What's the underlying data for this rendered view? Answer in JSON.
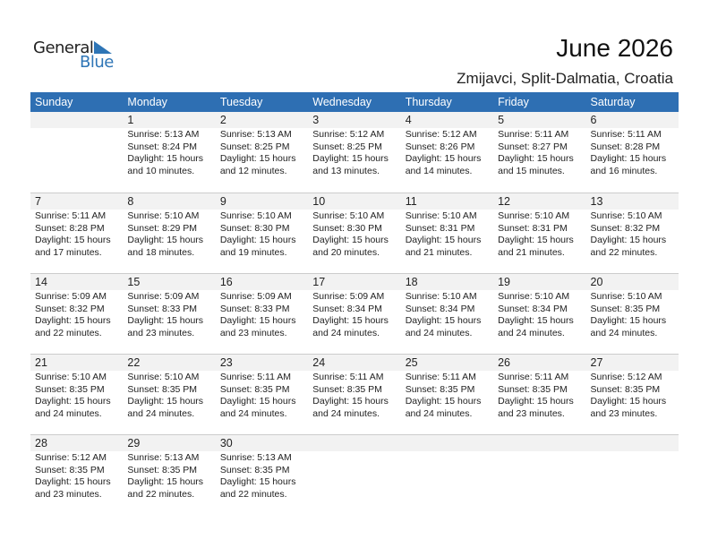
{
  "logo": {
    "word1": "General",
    "word2": "Blue"
  },
  "title": "June 2026",
  "subtitle": "Zmijavci, Split-Dalmatia, Croatia",
  "colors": {
    "header_bg": "#2e6fb3",
    "day_bar": "#f2f2f2",
    "logo_blue": "#2e75b6"
  },
  "weekdays": [
    "Sunday",
    "Monday",
    "Tuesday",
    "Wednesday",
    "Thursday",
    "Friday",
    "Saturday"
  ],
  "weeks": [
    [
      null,
      {
        "day": "1",
        "sunrise": "Sunrise: 5:13 AM",
        "sunset": "Sunset: 8:24 PM",
        "daylight": "Daylight: 15 hours",
        "minutes": "and 10 minutes."
      },
      {
        "day": "2",
        "sunrise": "Sunrise: 5:13 AM",
        "sunset": "Sunset: 8:25 PM",
        "daylight": "Daylight: 15 hours",
        "minutes": "and 12 minutes."
      },
      {
        "day": "3",
        "sunrise": "Sunrise: 5:12 AM",
        "sunset": "Sunset: 8:25 PM",
        "daylight": "Daylight: 15 hours",
        "minutes": "and 13 minutes."
      },
      {
        "day": "4",
        "sunrise": "Sunrise: 5:12 AM",
        "sunset": "Sunset: 8:26 PM",
        "daylight": "Daylight: 15 hours",
        "minutes": "and 14 minutes."
      },
      {
        "day": "5",
        "sunrise": "Sunrise: 5:11 AM",
        "sunset": "Sunset: 8:27 PM",
        "daylight": "Daylight: 15 hours",
        "minutes": "and 15 minutes."
      },
      {
        "day": "6",
        "sunrise": "Sunrise: 5:11 AM",
        "sunset": "Sunset: 8:28 PM",
        "daylight": "Daylight: 15 hours",
        "minutes": "and 16 minutes."
      }
    ],
    [
      {
        "day": "7",
        "sunrise": "Sunrise: 5:11 AM",
        "sunset": "Sunset: 8:28 PM",
        "daylight": "Daylight: 15 hours",
        "minutes": "and 17 minutes."
      },
      {
        "day": "8",
        "sunrise": "Sunrise: 5:10 AM",
        "sunset": "Sunset: 8:29 PM",
        "daylight": "Daylight: 15 hours",
        "minutes": "and 18 minutes."
      },
      {
        "day": "9",
        "sunrise": "Sunrise: 5:10 AM",
        "sunset": "Sunset: 8:30 PM",
        "daylight": "Daylight: 15 hours",
        "minutes": "and 19 minutes."
      },
      {
        "day": "10",
        "sunrise": "Sunrise: 5:10 AM",
        "sunset": "Sunset: 8:30 PM",
        "daylight": "Daylight: 15 hours",
        "minutes": "and 20 minutes."
      },
      {
        "day": "11",
        "sunrise": "Sunrise: 5:10 AM",
        "sunset": "Sunset: 8:31 PM",
        "daylight": "Daylight: 15 hours",
        "minutes": "and 21 minutes."
      },
      {
        "day": "12",
        "sunrise": "Sunrise: 5:10 AM",
        "sunset": "Sunset: 8:31 PM",
        "daylight": "Daylight: 15 hours",
        "minutes": "and 21 minutes."
      },
      {
        "day": "13",
        "sunrise": "Sunrise: 5:10 AM",
        "sunset": "Sunset: 8:32 PM",
        "daylight": "Daylight: 15 hours",
        "minutes": "and 22 minutes."
      }
    ],
    [
      {
        "day": "14",
        "sunrise": "Sunrise: 5:09 AM",
        "sunset": "Sunset: 8:32 PM",
        "daylight": "Daylight: 15 hours",
        "minutes": "and 22 minutes."
      },
      {
        "day": "15",
        "sunrise": "Sunrise: 5:09 AM",
        "sunset": "Sunset: 8:33 PM",
        "daylight": "Daylight: 15 hours",
        "minutes": "and 23 minutes."
      },
      {
        "day": "16",
        "sunrise": "Sunrise: 5:09 AM",
        "sunset": "Sunset: 8:33 PM",
        "daylight": "Daylight: 15 hours",
        "minutes": "and 23 minutes."
      },
      {
        "day": "17",
        "sunrise": "Sunrise: 5:09 AM",
        "sunset": "Sunset: 8:34 PM",
        "daylight": "Daylight: 15 hours",
        "minutes": "and 24 minutes."
      },
      {
        "day": "18",
        "sunrise": "Sunrise: 5:10 AM",
        "sunset": "Sunset: 8:34 PM",
        "daylight": "Daylight: 15 hours",
        "minutes": "and 24 minutes."
      },
      {
        "day": "19",
        "sunrise": "Sunrise: 5:10 AM",
        "sunset": "Sunset: 8:34 PM",
        "daylight": "Daylight: 15 hours",
        "minutes": "and 24 minutes."
      },
      {
        "day": "20",
        "sunrise": "Sunrise: 5:10 AM",
        "sunset": "Sunset: 8:35 PM",
        "daylight": "Daylight: 15 hours",
        "minutes": "and 24 minutes."
      }
    ],
    [
      {
        "day": "21",
        "sunrise": "Sunrise: 5:10 AM",
        "sunset": "Sunset: 8:35 PM",
        "daylight": "Daylight: 15 hours",
        "minutes": "and 24 minutes."
      },
      {
        "day": "22",
        "sunrise": "Sunrise: 5:10 AM",
        "sunset": "Sunset: 8:35 PM",
        "daylight": "Daylight: 15 hours",
        "minutes": "and 24 minutes."
      },
      {
        "day": "23",
        "sunrise": "Sunrise: 5:11 AM",
        "sunset": "Sunset: 8:35 PM",
        "daylight": "Daylight: 15 hours",
        "minutes": "and 24 minutes."
      },
      {
        "day": "24",
        "sunrise": "Sunrise: 5:11 AM",
        "sunset": "Sunset: 8:35 PM",
        "daylight": "Daylight: 15 hours",
        "minutes": "and 24 minutes."
      },
      {
        "day": "25",
        "sunrise": "Sunrise: 5:11 AM",
        "sunset": "Sunset: 8:35 PM",
        "daylight": "Daylight: 15 hours",
        "minutes": "and 24 minutes."
      },
      {
        "day": "26",
        "sunrise": "Sunrise: 5:11 AM",
        "sunset": "Sunset: 8:35 PM",
        "daylight": "Daylight: 15 hours",
        "minutes": "and 23 minutes."
      },
      {
        "day": "27",
        "sunrise": "Sunrise: 5:12 AM",
        "sunset": "Sunset: 8:35 PM",
        "daylight": "Daylight: 15 hours",
        "minutes": "and 23 minutes."
      }
    ],
    [
      {
        "day": "28",
        "sunrise": "Sunrise: 5:12 AM",
        "sunset": "Sunset: 8:35 PM",
        "daylight": "Daylight: 15 hours",
        "minutes": "and 23 minutes."
      },
      {
        "day": "29",
        "sunrise": "Sunrise: 5:13 AM",
        "sunset": "Sunset: 8:35 PM",
        "daylight": "Daylight: 15 hours",
        "minutes": "and 22 minutes."
      },
      {
        "day": "30",
        "sunrise": "Sunrise: 5:13 AM",
        "sunset": "Sunset: 8:35 PM",
        "daylight": "Daylight: 15 hours",
        "minutes": "and 22 minutes."
      },
      null,
      null,
      null,
      null
    ]
  ]
}
